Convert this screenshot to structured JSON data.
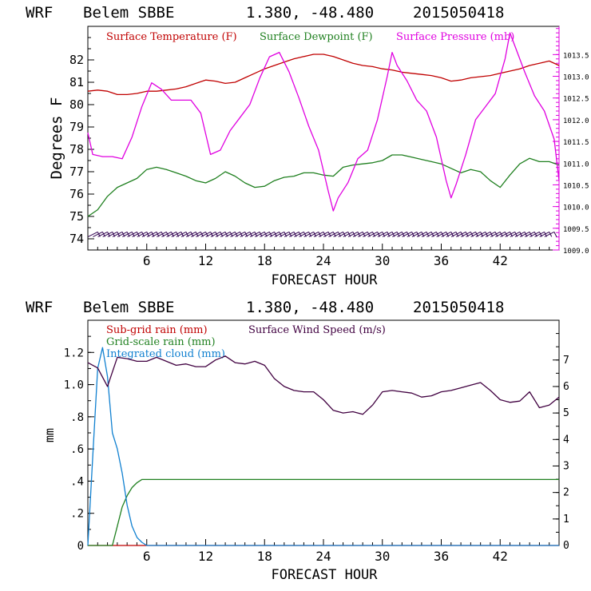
{
  "chart_data": [
    {
      "type": "line",
      "header": {
        "model": "WRF",
        "station": "Belem SBBE",
        "coords": "1.380, -48.480",
        "init": "2015050418"
      },
      "xlabel": "FORECAST HOUR",
      "ylabel": "Degrees F",
      "xlim": [
        0,
        48
      ],
      "x_ticks": [
        "6",
        "12",
        "18",
        "24",
        "30",
        "36",
        "42"
      ],
      "ylim": [
        73.5,
        83.5
      ],
      "y_ticks": [
        "74",
        "75",
        "76",
        "77",
        "78",
        "79",
        "80",
        "81",
        "82"
      ],
      "y2lim": [
        1009.0,
        1014.15
      ],
      "y2_ticks": [
        "1009.0",
        "1009.5",
        "1010.0",
        "1010.5",
        "1011.0",
        "1011.5",
        "1012.0",
        "1012.5",
        "1013.0",
        "1013.5"
      ],
      "legend": [
        "Surface Temperature (F)",
        "Surface Dewpoint (F)",
        "Surface Pressure (mb)"
      ],
      "colors": {
        "temperature": "#c00000",
        "dewpoint": "#208020",
        "pressure": "#e000e0",
        "wind_barbs": "#300050"
      },
      "series": [
        {
          "name": "Surface Temperature (F)",
          "axis": "left",
          "x": [
            0,
            1,
            2,
            3,
            4,
            5,
            6,
            7,
            8,
            9,
            10,
            11,
            12,
            13,
            14,
            15,
            16,
            17,
            18,
            19,
            20,
            21,
            22,
            23,
            24,
            25,
            26,
            27,
            28,
            29,
            30,
            31,
            32,
            33,
            34,
            35,
            36,
            37,
            38,
            39,
            40,
            41,
            42,
            43,
            44,
            45,
            46,
            47,
            48
          ],
          "y": [
            80.6,
            80.65,
            80.6,
            80.45,
            80.45,
            80.5,
            80.6,
            80.6,
            80.65,
            80.7,
            80.8,
            80.95,
            81.1,
            81.05,
            80.95,
            81.0,
            81.2,
            81.4,
            81.6,
            81.75,
            81.9,
            82.05,
            82.15,
            82.25,
            82.25,
            82.15,
            82.0,
            81.85,
            81.75,
            81.7,
            81.6,
            81.55,
            81.45,
            81.4,
            81.35,
            81.3,
            81.2,
            81.05,
            81.1,
            81.2,
            81.25,
            81.3,
            81.4,
            81.5,
            81.6,
            81.75,
            81.85,
            81.95,
            81.75
          ]
        },
        {
          "name": "Surface Dewpoint (F)",
          "axis": "left",
          "x": [
            0,
            1,
            2,
            3,
            4,
            5,
            6,
            7,
            8,
            9,
            10,
            11,
            12,
            13,
            14,
            15,
            16,
            17,
            18,
            19,
            20,
            21,
            22,
            23,
            24,
            25,
            26,
            27,
            28,
            29,
            30,
            31,
            32,
            33,
            34,
            35,
            36,
            37,
            38,
            39,
            40,
            41,
            42,
            43,
            44,
            45,
            46,
            47,
            48
          ],
          "y": [
            75.0,
            75.3,
            75.9,
            76.3,
            76.5,
            76.7,
            77.1,
            77.2,
            77.1,
            76.95,
            76.8,
            76.6,
            76.5,
            76.7,
            77.0,
            76.8,
            76.5,
            76.3,
            76.35,
            76.6,
            76.75,
            76.8,
            76.95,
            76.95,
            76.85,
            76.8,
            77.2,
            77.3,
            77.35,
            77.4,
            77.5,
            77.75,
            77.75,
            77.65,
            77.55,
            77.45,
            77.35,
            77.15,
            76.95,
            77.1,
            77.0,
            76.6,
            76.3,
            76.85,
            77.35,
            77.6,
            77.45,
            77.45,
            77.3
          ]
        },
        {
          "name": "Surface Pressure (mb)",
          "axis": "right",
          "x": [
            0,
            0.5,
            1.5,
            2.5,
            3.5,
            4.5,
            5.5,
            6.5,
            7.5,
            8.5,
            9.5,
            10.5,
            11.5,
            12.5,
            13.5,
            14.5,
            15.5,
            16.5,
            17.5,
            18.5,
            19.5,
            20.5,
            21.5,
            22.5,
            23.5,
            24.5,
            25.0,
            25.5,
            26.5,
            27.5,
            28.5,
            29.5,
            30.5,
            31.0,
            31.5,
            32.5,
            33.5,
            34.5,
            35.5,
            36.5,
            37.0,
            37.5,
            38.5,
            39.5,
            40.5,
            41.5,
            42.5,
            43.0,
            43.5,
            44.5,
            45.5,
            46.5,
            47.5,
            48
          ],
          "y": [
            1011.7,
            1011.2,
            1011.15,
            1011.15,
            1011.1,
            1011.6,
            1012.3,
            1012.85,
            1012.7,
            1012.45,
            1012.45,
            1012.45,
            1012.15,
            1011.2,
            1011.3,
            1011.75,
            1012.05,
            1012.35,
            1012.95,
            1013.45,
            1013.55,
            1013.1,
            1012.5,
            1011.85,
            1011.3,
            1010.35,
            1009.9,
            1010.2,
            1010.55,
            1011.1,
            1011.3,
            1012.0,
            1013.0,
            1013.55,
            1013.25,
            1012.9,
            1012.45,
            1012.2,
            1011.6,
            1010.6,
            1010.2,
            1010.5,
            1011.2,
            1012.0,
            1012.3,
            1012.6,
            1013.4,
            1014.0,
            1013.7,
            1013.1,
            1012.55,
            1012.2,
            1011.55,
            1010.6
          ]
        }
      ]
    },
    {
      "type": "line",
      "header": {
        "model": "WRF",
        "station": "Belem SBBE",
        "coords": "1.380, -48.480",
        "init": "2015050418"
      },
      "xlabel": "FORECAST HOUR",
      "ylabel": "mm",
      "xlim": [
        0,
        48
      ],
      "x_ticks": [
        "6",
        "12",
        "18",
        "24",
        "30",
        "36",
        "42"
      ],
      "ylim": [
        0,
        1.4
      ],
      "y_ticks": [
        "0",
        ".2",
        ".4",
        ".6",
        ".8",
        "1.0",
        "1.2"
      ],
      "y2lim": [
        0,
        8.5
      ],
      "y2_ticks": [
        "0",
        "1",
        "2",
        "3",
        "4",
        "5",
        "6",
        "7"
      ],
      "legend": [
        "Sub-grid rain (mm)",
        "Grid-scale rain (mm)",
        "Integrated cloud (mm)",
        "Surface Wind Speed (m/s)"
      ],
      "colors": {
        "subgrid_rain": "#c00000",
        "gridscale_rain": "#208020",
        "cloud": "#1080d0",
        "wind": "#400040"
      },
      "series": [
        {
          "name": "Sub-grid rain (mm)",
          "axis": "left",
          "x": [
            0,
            48
          ],
          "y": [
            0,
            0
          ]
        },
        {
          "name": "Grid-scale rain (mm)",
          "axis": "left",
          "x": [
            0,
            2.5,
            3.0,
            3.5,
            4.0,
            4.5,
            5.0,
            5.5,
            6.0,
            48
          ],
          "y": [
            0,
            0,
            0.12,
            0.24,
            0.31,
            0.36,
            0.39,
            0.41,
            0.41,
            0.41
          ]
        },
        {
          "name": "Integrated cloud (mm)",
          "axis": "left",
          "x": [
            0,
            0.5,
            1.0,
            1.5,
            2.0,
            2.5,
            3.0,
            3.5,
            4.0,
            4.5,
            5.0,
            5.5,
            6.0,
            48
          ],
          "y": [
            0,
            0.55,
            1.1,
            1.23,
            1.05,
            0.7,
            0.6,
            0.45,
            0.25,
            0.12,
            0.05,
            0.02,
            0,
            0
          ]
        },
        {
          "name": "Surface Wind Speed (m/s)",
          "axis": "right",
          "x": [
            0,
            1,
            2,
            3,
            4,
            5,
            6,
            7,
            8,
            9,
            10,
            11,
            12,
            13,
            14,
            15,
            16,
            17,
            18,
            19,
            20,
            21,
            22,
            23,
            24,
            25,
            26,
            27,
            28,
            29,
            30,
            31,
            32,
            33,
            34,
            35,
            36,
            37,
            38,
            39,
            40,
            41,
            42,
            43,
            44,
            45,
            46,
            47,
            48
          ],
          "y": [
            6.9,
            6.7,
            6.0,
            7.1,
            7.05,
            6.95,
            6.95,
            7.1,
            6.95,
            6.8,
            6.85,
            6.75,
            6.75,
            7.0,
            7.15,
            6.9,
            6.85,
            6.95,
            6.8,
            6.3,
            6.0,
            5.85,
            5.8,
            5.8,
            5.5,
            5.1,
            5.0,
            5.05,
            4.95,
            5.3,
            5.8,
            5.85,
            5.8,
            5.75,
            5.6,
            5.65,
            5.8,
            5.85,
            5.95,
            6.05,
            6.15,
            5.85,
            5.5,
            5.4,
            5.45,
            5.8,
            5.2,
            5.3,
            5.6
          ]
        }
      ]
    }
  ]
}
